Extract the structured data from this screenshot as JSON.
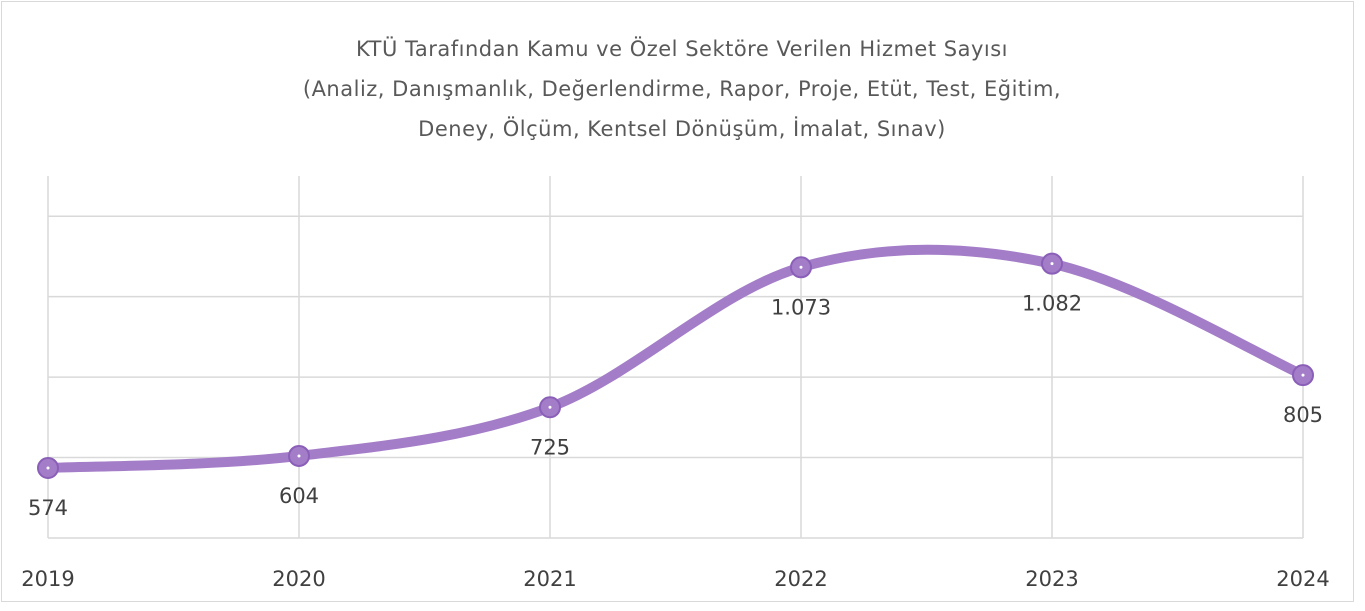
{
  "chart_data": {
    "type": "line",
    "title": [
      "KTÜ Tarafından Kamu ve Özel Sektöre Verilen Hizmet Sayısı",
      "(Analiz, Danışmanlık, Değerlendirme, Rapor, Proje, Etüt, Test, Eğitim,",
      "Deney, Ölçüm, Kentsel Dönüşüm, İmalat, Sınav)"
    ],
    "categories": [
      "2019",
      "2020",
      "2021",
      "2022",
      "2023",
      "2024"
    ],
    "series": [
      {
        "color": "#a47dc8",
        "values": [
          574,
          604,
          725,
          1073,
          1082,
          805
        ],
        "value_labels": [
          "574",
          "604",
          "725",
          "1.073",
          "1.082",
          "805"
        ]
      }
    ],
    "ylim": [
      400,
      1300
    ],
    "yticks": [
      400,
      600,
      800,
      1000,
      1200
    ],
    "grid": true,
    "ytick_labels_visible": false,
    "smooth": true
  }
}
